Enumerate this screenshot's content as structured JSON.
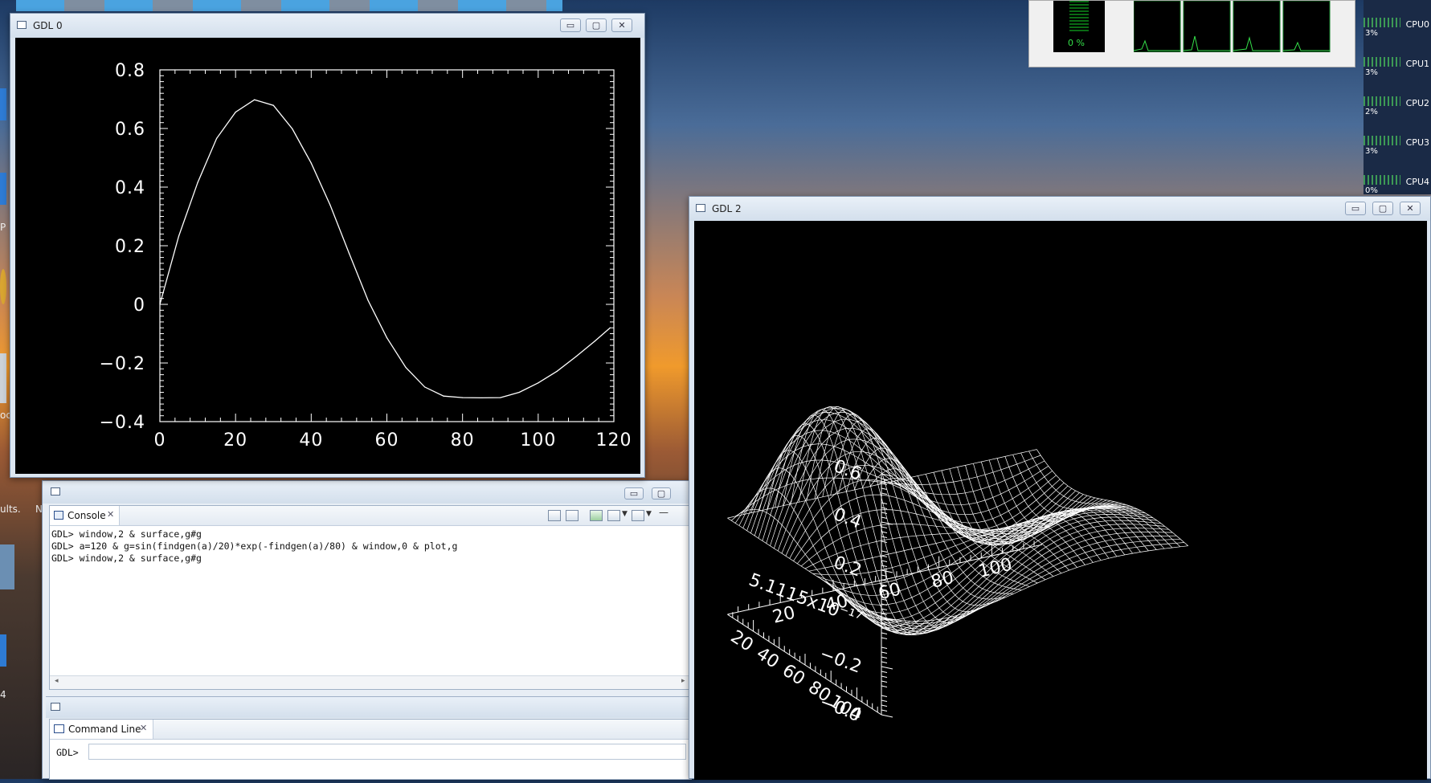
{
  "desktop": {
    "left_fragments": [
      "ults.",
      "N",
      "P",
      "oc",
      "4"
    ],
    "cpu_meter": {
      "percent_text": "0 %"
    },
    "cpu_cores": [
      {
        "label": "CPU0",
        "percent": "3%"
      },
      {
        "label": "CPU1",
        "percent": "3%"
      },
      {
        "label": "CPU2",
        "percent": "2%"
      },
      {
        "label": "CPU3",
        "percent": "3%"
      },
      {
        "label": "CPU4",
        "percent": "0%"
      }
    ]
  },
  "gdl0": {
    "title": "GDL 0",
    "controls": {
      "minimize": "▭",
      "maximize": "▢",
      "close": "✕"
    },
    "chart_data": {
      "type": "line",
      "title": "",
      "xlabel": "",
      "ylabel": "",
      "xlim": [
        0,
        120
      ],
      "ylim": [
        -0.4,
        0.8
      ],
      "x_ticks": [
        "0",
        "20",
        "40",
        "60",
        "80",
        "100",
        "120"
      ],
      "y_ticks": [
        "−0.4",
        "−0.2",
        "0",
        "0.2",
        "0.4",
        "0.6",
        "0.8"
      ],
      "series": [
        {
          "x": [
            0,
            5,
            10,
            15,
            20,
            25,
            30,
            35,
            40,
            45,
            50,
            55,
            60,
            65,
            70,
            75,
            80,
            85,
            90,
            95,
            100,
            105,
            110,
            115,
            119
          ],
          "values": [
            0.0,
            0.233,
            0.416,
            0.566,
            0.656,
            0.698,
            0.679,
            0.599,
            0.482,
            0.339,
            0.175,
            0.014,
            -0.114,
            -0.215,
            -0.282,
            -0.313,
            -0.318,
            -0.319,
            -0.318,
            -0.3,
            -0.268,
            -0.228,
            -0.178,
            -0.125,
            -0.08
          ]
        }
      ]
    }
  },
  "console_panel": {
    "tab_label": "Console",
    "lines": [
      "GDL> window,2 & surface,g#g",
      "GDL> a=120 & g=sin(findgen(a)/20)*exp(-findgen(a)/80) & window,0 & plot,g",
      "GDL> window,2 & surface,g#g"
    ]
  },
  "command_line_panel": {
    "tab_label": "Command Line",
    "prompt": "GDL>",
    "input_value": ""
  },
  "gdl2": {
    "title": "GDL 2",
    "controls": {
      "minimize": "▭",
      "maximize": "▢",
      "close": "✕"
    },
    "chart_data": {
      "type": "surface",
      "title": "",
      "z_ticks": [
        "0.6",
        "0.4",
        "0.2",
        "5.1115x10⁻¹⁷",
        "−0.2",
        "−0.4"
      ],
      "x_ticks": [
        "20",
        "40",
        "60",
        "80",
        "100"
      ],
      "y_ticks": [
        "20",
        "40",
        "60",
        "80",
        "100"
      ],
      "zlim": [
        -0.4,
        0.6
      ],
      "surface_function": "g(x)*g(y), g(t)=sin(t/20)*exp(-t/80), t=0..119"
    }
  }
}
